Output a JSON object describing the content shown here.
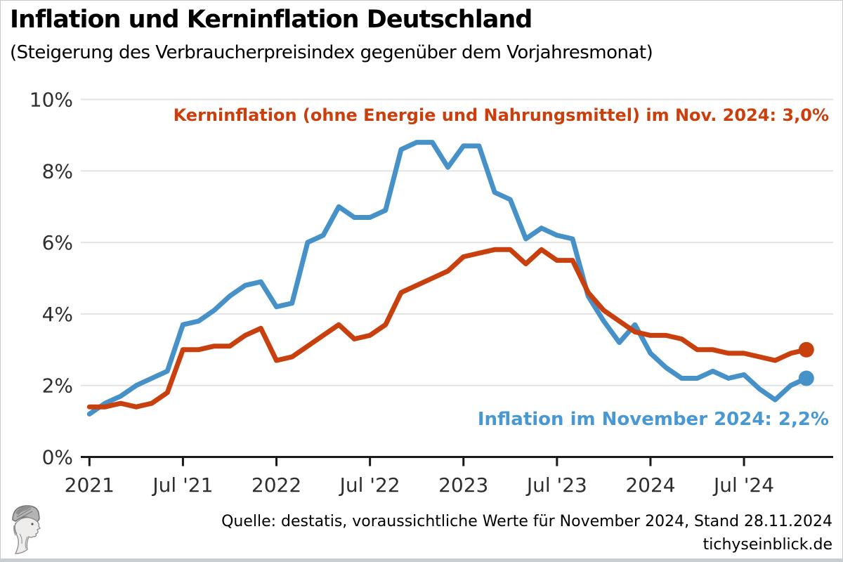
{
  "page": {
    "title": "Inflation und Kerninflation Deutschland",
    "subtitle": "(Steigerung des Verbraucherpreisindex gegenüber dem Vorjahresmonat)"
  },
  "annotations": {
    "core_label": "Kerninflation (ohne Energie und Nahrungsmittel) im Nov. 2024: 3,0%",
    "core_value": "3,0%",
    "headline_label": "Inflation im November 2024: 2,2%",
    "headline_value": "2,2%"
  },
  "footer": {
    "source_line": "Quelle: destatis, voraussichtliche Werte für November 2024, Stand 28.11.2024",
    "site": "tichyseinblick.de"
  },
  "logo": {
    "name": "tichys-einblick-hermes-head-logo"
  },
  "colors": {
    "inflation_blue": "#4691C8",
    "inflation_blue_text": "#4898D3",
    "core_orange": "#C9400F",
    "core_orange_text": "#CC3F0C",
    "grid": "#E3E3E3",
    "axis": "#1A1A1A",
    "tick_label": "#2E2E2E",
    "bottom_bar": "#C9CDD1"
  },
  "chart_data": {
    "type": "line",
    "x": [
      "2021-01",
      "2021-02",
      "2021-03",
      "2021-04",
      "2021-05",
      "2021-06",
      "2021-07",
      "2021-08",
      "2021-09",
      "2021-10",
      "2021-11",
      "2021-12",
      "2022-01",
      "2022-02",
      "2022-03",
      "2022-04",
      "2022-05",
      "2022-06",
      "2022-07",
      "2022-08",
      "2022-09",
      "2022-10",
      "2022-11",
      "2022-12",
      "2023-01",
      "2023-02",
      "2023-03",
      "2023-04",
      "2023-05",
      "2023-06",
      "2023-07",
      "2023-08",
      "2023-09",
      "2023-10",
      "2023-11",
      "2023-12",
      "2024-01",
      "2024-02",
      "2024-03",
      "2024-04",
      "2024-05",
      "2024-06",
      "2024-07",
      "2024-08",
      "2024-09",
      "2024-10",
      "2024-11"
    ],
    "series": [
      {
        "name": "Inflation",
        "color": "#4691C8",
        "values": [
          1.2,
          1.5,
          1.7,
          2.0,
          2.2,
          2.4,
          3.7,
          3.8,
          4.1,
          4.5,
          4.8,
          4.9,
          4.2,
          4.3,
          6.0,
          6.2,
          7.0,
          6.7,
          6.7,
          6.9,
          8.6,
          8.8,
          8.8,
          8.1,
          8.7,
          8.7,
          7.4,
          7.2,
          6.1,
          6.4,
          6.2,
          6.1,
          4.5,
          3.8,
          3.2,
          3.7,
          2.9,
          2.5,
          2.2,
          2.2,
          2.4,
          2.2,
          2.3,
          1.9,
          1.6,
          2.0,
          2.2
        ]
      },
      {
        "name": "Kerninflation (ohne Energie und Nahrungsmittel)",
        "color": "#C9400F",
        "values": [
          1.4,
          1.4,
          1.5,
          1.4,
          1.5,
          1.8,
          3.0,
          3.0,
          3.1,
          3.1,
          3.4,
          3.6,
          2.7,
          2.8,
          3.1,
          3.4,
          3.7,
          3.3,
          3.4,
          3.7,
          4.6,
          4.8,
          5.0,
          5.2,
          5.6,
          5.7,
          5.8,
          5.8,
          5.4,
          5.8,
          5.5,
          5.5,
          4.6,
          4.1,
          3.8,
          3.5,
          3.4,
          3.4,
          3.3,
          3.0,
          3.0,
          2.9,
          2.9,
          2.8,
          2.7,
          2.9,
          3.0
        ]
      }
    ],
    "ylim": [
      0,
      10
    ],
    "yticks": [
      {
        "value": 0,
        "label": "0%"
      },
      {
        "value": 2,
        "label": "2%"
      },
      {
        "value": 4,
        "label": "4%"
      },
      {
        "value": 6,
        "label": "6%"
      },
      {
        "value": 8,
        "label": "8%"
      },
      {
        "value": 10,
        "label": "10%"
      }
    ],
    "xticks": [
      {
        "month_index": 0,
        "label": "2021"
      },
      {
        "month_index": 6,
        "label": "Jul '21"
      },
      {
        "month_index": 12,
        "label": "2022"
      },
      {
        "month_index": 18,
        "label": "Jul '22"
      },
      {
        "month_index": 24,
        "label": "2023"
      },
      {
        "month_index": 30,
        "label": "Jul '23"
      },
      {
        "month_index": 36,
        "label": "2024"
      },
      {
        "month_index": 42,
        "label": "Jul '24"
      }
    ],
    "grid": "horizontal-only",
    "legend": "none",
    "end_markers": true
  }
}
